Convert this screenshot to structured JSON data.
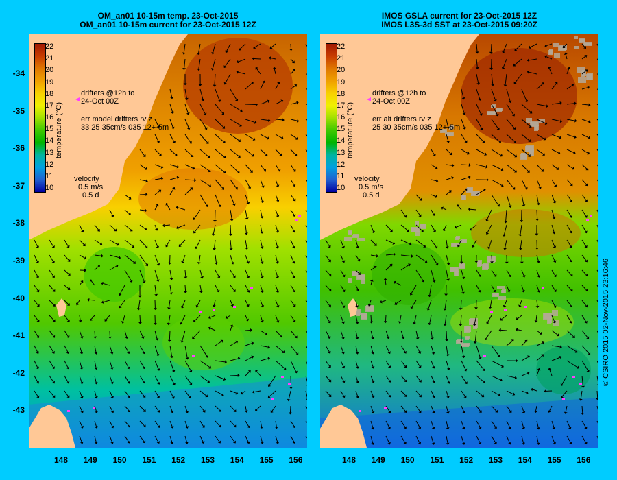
{
  "left_panel": {
    "title_line1": "OM_an01 10-15m temp. 23-Oct-2015",
    "title_line2": "OM_an01 10-15m current for 23-Oct-2015 12Z",
    "drifters_line1": "drifters @12h to",
    "drifters_line2": "24-Oct 00Z",
    "err_line1": "err model drifters rv z",
    "err_line2": "33 25 35cm/s 035 12+-5m",
    "velocity_label": "velocity",
    "velocity_speed": "0.5 m/s",
    "velocity_duration": "0.5 d"
  },
  "right_panel": {
    "title_line1": "IMOS GSLA current for 23-Oct-2015 12Z",
    "title_line2": "IMOS L3S-3d SST at 23-Oct-2015 09:20Z",
    "drifters_line1": "drifters @12h to",
    "drifters_line2": "24-Oct 00Z",
    "err_line1": "err alt drifters rv z",
    "err_line2": "25 30 35cm/s 035 12+-5m",
    "velocity_label": "velocity",
    "velocity_speed": "0.5 m/s",
    "velocity_duration": "0.5 d"
  },
  "colorbar": {
    "label": "temperature (°C)",
    "ticks": [
      "22",
      "21",
      "20",
      "19",
      "18",
      "17",
      "16",
      "15",
      "14",
      "13",
      "12",
      "11",
      "10"
    ],
    "colors": [
      "#a01800",
      "#c83c00",
      "#e07800",
      "#f0a000",
      "#f8d000",
      "#f0f000",
      "#a0e000",
      "#40c800",
      "#00b400",
      "#00b4a0",
      "#00a0e0",
      "#2060d0",
      "#0000a0"
    ]
  },
  "x_ticks": [
    "148",
    "149",
    "150",
    "151",
    "152",
    "153",
    "154",
    "155",
    "156"
  ],
  "y_ticks": [
    "-34",
    "-35",
    "-36",
    "-37",
    "-38",
    "-39",
    "-40",
    "-41",
    "-42",
    "-43"
  ],
  "copyright": "© CSIRO 2015   02-Nov-2015 23:16:46",
  "colors": {
    "background": "#00ccff",
    "land": "#ffc896",
    "drifter": "#ff40ff"
  }
}
